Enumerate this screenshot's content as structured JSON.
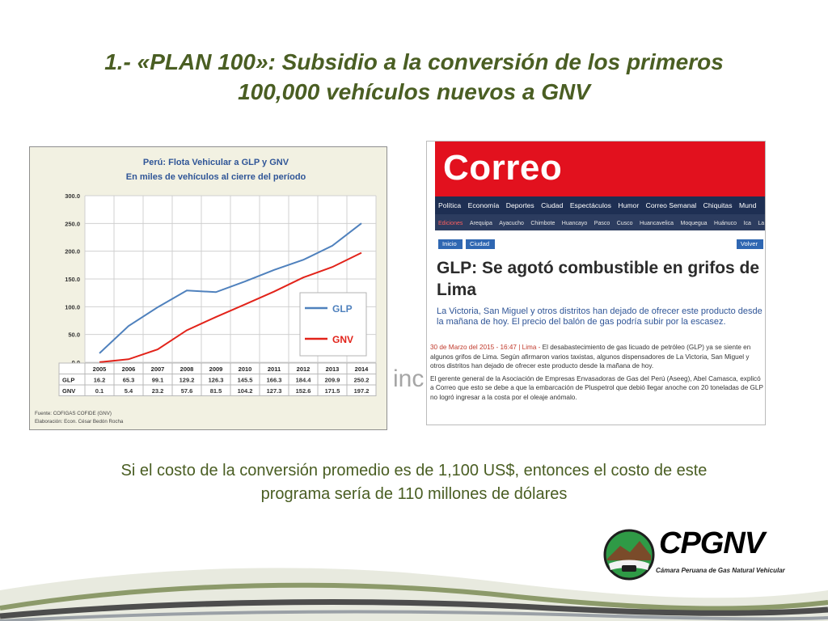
{
  "slide": {
    "title_lines": [
      "1.- «PLAN 100»: Subsidio a la conversión de los primeros",
      "100,000 vehículos nuevos a GNV"
    ],
    "cost_note_lines": [
      "Si el costo de la conversión promedio es de 1,100 US$, entonces el costo de este",
      "programa sería de 110 millones de dólares"
    ],
    "stray_text": "inc",
    "colors": {
      "title": "#4a5e23",
      "glp": "#4f81bd",
      "gnv": "#e2231a",
      "news_red": "#e2111e",
      "news_nav": "#1e2f53"
    }
  },
  "chart": {
    "title_line1": "Perú: Flota Vehicular a GLP y GNV",
    "title_line2": "En miles de vehículos al cierre del período",
    "source_line1": "Fuente: COFIGAS COFIDE (GNV)",
    "source_line2": "Elaboración: Econ. César Bedón Rocha",
    "table_row_labels": [
      "GLP",
      "GNV"
    ],
    "glp_values_text": [
      "16.2",
      "65.3",
      "99.1",
      "129.2",
      "126.3",
      "145.5",
      "166.3",
      "184.4",
      "209.9",
      "250.2"
    ],
    "gnv_values_text": [
      "0.1",
      "5.4",
      "23.2",
      "57.6",
      "81.5",
      "104.2",
      "127.3",
      "152.6",
      "171.5",
      "197.2"
    ]
  },
  "chart_data": {
    "type": "line",
    "title": "Perú: Flota Vehicular a GLP y GNV",
    "subtitle": "En miles de vehículos al cierre del período",
    "categories": [
      "2005",
      "2006",
      "2007",
      "2008",
      "2009",
      "2010",
      "2011",
      "2012",
      "2013",
      "2014"
    ],
    "series": [
      {
        "name": "GLP",
        "color": "#4f81bd",
        "values": [
          16.2,
          65.3,
          99.1,
          129.2,
          126.3,
          145.5,
          166.3,
          184.4,
          209.9,
          250.2
        ]
      },
      {
        "name": "GNV",
        "color": "#e2231a",
        "values": [
          0.1,
          5.4,
          23.2,
          57.6,
          81.5,
          104.2,
          127.3,
          152.6,
          171.5,
          197.2
        ]
      }
    ],
    "yticks": [
      "300.0",
      "250.0",
      "200.0",
      "150.0",
      "100.0",
      "50.0",
      "0.0"
    ],
    "ylim": [
      0,
      300
    ],
    "grid": true,
    "legend_position": "bottom-right"
  },
  "news": {
    "logo": "Correo",
    "nav_items": [
      "Política",
      "Economía",
      "Deportes",
      "Ciudad",
      "Espectáculos",
      "Humor",
      "Correo Semanal",
      "Chiquitas",
      "Mund"
    ],
    "editions_label": "Ediciones",
    "editions": [
      "Arequipa",
      "Ayacucho",
      "Chimbote",
      "Huancayo",
      "Pasco",
      "Cusco",
      "Huancavelica",
      "Moquegua",
      "Huánuco",
      "Ica",
      "La"
    ],
    "crumb_home": "Inicio",
    "crumb_city": "Ciudad",
    "crumb_back": "Volver",
    "headline": "GLP: Se agotó combustible en grifos de Lima",
    "deck": "La Victoria, San Miguel y otros distritos han dejado de ofrecer este producto desde la mañana de hoy. El precio del balón de gas podría subir por la escasez.",
    "date": "30 de Marzo del 2015 - 16:47 | Lima -",
    "body_p1": "El desabastecimiento de gas licuado de petróleo (GLP) ya se siente en algunos grifos de Lima. Según afirmaron varios taxistas, algunos dispensadores de La Victoria, San Miguel y otros distritos han dejado de ofrecer este producto desde la mañana de hoy.",
    "body_p2": "El gerente general de la Asociación de Empresas Envasadoras de Gas del Perú (Aseeg), Abel Camasca, explicó a Correo que esto se debe a que la embarcación de Pluspetrol que debió llegar anoche con 20 toneladas de GLP no logró ingresar a la costa por el oleaje anómalo."
  },
  "brand": {
    "name": "CPGNV",
    "tagline": "Cámara Peruana de Gas Natural Vehicular"
  }
}
